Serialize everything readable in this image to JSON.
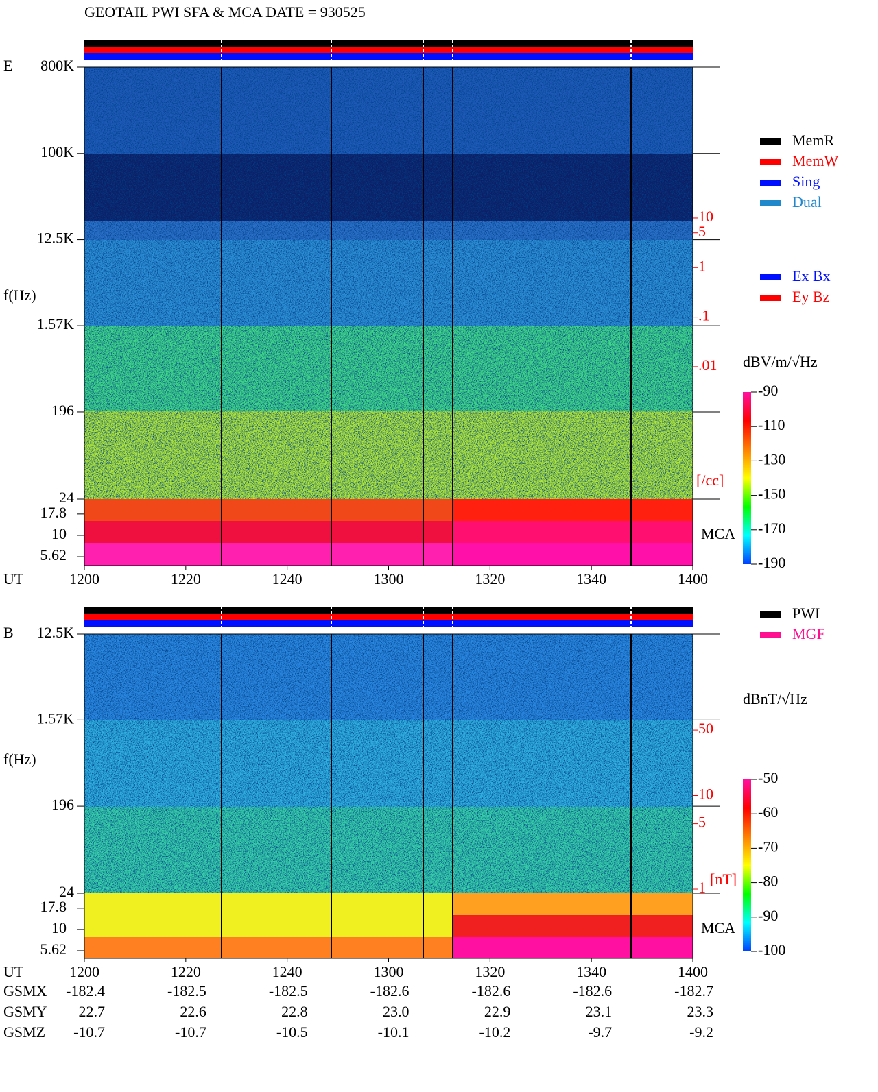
{
  "title": "GEOTAIL  PWI SFA & MCA   DATE = 930525",
  "chart_data": [
    {
      "type": "spectrogram",
      "panel_label": "E",
      "y_label": "f(Hz)",
      "log": true,
      "ylim": [
        24,
        800000
      ],
      "yticks": [
        {
          "value": 800000,
          "label": "800K"
        },
        {
          "value": 100000,
          "label": "100K"
        },
        {
          "value": 12500,
          "label": "12.5K"
        },
        {
          "value": 1570,
          "label": "1.57K"
        },
        196,
        24
      ],
      "mca_label": "MCA",
      "mca_ylim": [
        4.42,
        26.7
      ],
      "mca_ticks": [
        17.8,
        10,
        5.62
      ],
      "y2_label": "[/cc]",
      "y2lim": [
        2.14e-05,
        11000
      ],
      "y2_color": "#ff0000",
      "y2ticks": [
        10,
        5,
        1,
        {
          "value": 0.1,
          "label": ".1"
        },
        {
          "value": 0.01,
          "label": ".01"
        }
      ],
      "x_label": "UT",
      "x_ticks": [
        "1200",
        "1220",
        "1240",
        "1300",
        "1320",
        "1340",
        "1400"
      ],
      "colorbar_label": "dBV/m/√Hz",
      "clim": [
        -190,
        -90
      ],
      "cticks": [
        -90,
        -110,
        -130,
        -150,
        -170,
        -190
      ],
      "colormap": [
        "#ff10a0",
        "#ff0000",
        "#ff8000",
        "#ffff00",
        "#00ff00",
        "#00ffff",
        "#0040ff"
      ],
      "legend": [
        {
          "name": "MemR",
          "color": "#000000"
        },
        {
          "name": "MemW",
          "color": "#ff0000"
        },
        {
          "name": "Sing",
          "color": "#0010ff"
        },
        {
          "name": "Dual",
          "color": "#2288cc"
        }
      ],
      "legend2": [
        {
          "name": "Ex Bx",
          "color": "#0010ff"
        },
        {
          "name": "Ey Bz",
          "color": "#ff0000"
        }
      ]
    },
    {
      "type": "spectrogram",
      "panel_label": "B",
      "y_label": "f(Hz)",
      "log": true,
      "ylim": [
        24,
        12500
      ],
      "yticks": [
        {
          "value": 12500,
          "label": "12.5K"
        },
        {
          "value": 1570,
          "label": "1.57K"
        },
        196,
        24
      ],
      "mca_label": "MCA",
      "mca_ylim": [
        4.58,
        26.7
      ],
      "mca_ticks": [
        17.8,
        10,
        5.62
      ],
      "y2_label": "[nT]",
      "y2lim": [
        0.904,
        531
      ],
      "y2_color": "#ff0000",
      "y2ticks": [
        50,
        10,
        5,
        1
      ],
      "x_label": "UT",
      "x_ticks": [
        "1200",
        "1220",
        "1240",
        "1300",
        "1320",
        "1340",
        "1400"
      ],
      "colorbar_label": "dBnT/√Hz",
      "clim": [
        -100,
        -50
      ],
      "cticks": [
        -50,
        -60,
        -70,
        -80,
        -90,
        -100
      ],
      "colormap": [
        "#ff10a0",
        "#ff0000",
        "#ff8000",
        "#ffff00",
        "#00ff00",
        "#00ffff",
        "#0040ff"
      ],
      "legend": [
        {
          "name": "PWI",
          "color": "#000000"
        },
        {
          "name": "MGF",
          "color": "#ff1090"
        }
      ],
      "legend2": []
    }
  ],
  "orbit": {
    "rows": [
      {
        "name": "GSMX",
        "values": [
          "-182.4",
          "-182.5",
          "-182.5",
          "-182.6",
          "-182.6",
          "-182.6",
          "-182.7"
        ]
      },
      {
        "name": "GSMY",
        "values": [
          "22.7",
          "22.6",
          "22.8",
          "23.0",
          "22.9",
          "23.1",
          "23.3"
        ]
      },
      {
        "name": "GSMZ",
        "values": [
          "-10.7",
          "-10.7",
          "-10.5",
          "-10.1",
          "-10.2",
          "-9.7",
          "-9.2"
        ]
      }
    ]
  }
}
